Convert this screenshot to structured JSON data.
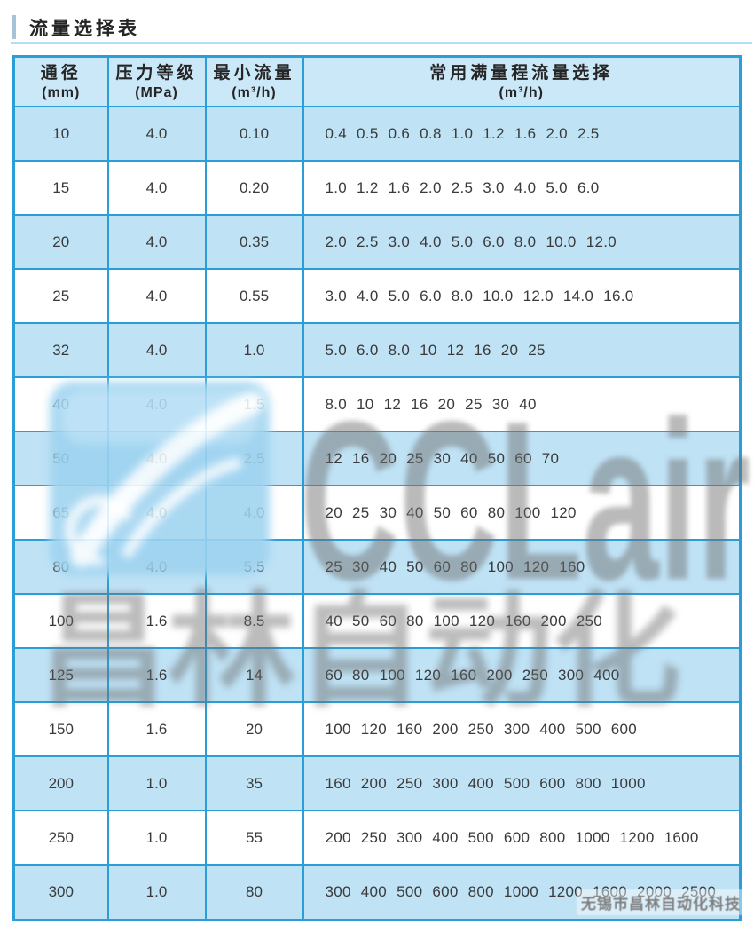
{
  "title": "流量选择表",
  "table": {
    "headers": [
      {
        "key": "dn",
        "line1": "通径",
        "line2": "(mm)"
      },
      {
        "key": "mpa",
        "line1": "压力等级",
        "line2": "(MPa)"
      },
      {
        "key": "min",
        "line1": "最小流量",
        "line2": "(m³/h)"
      },
      {
        "key": "range",
        "line1": "常用满量程流量选择",
        "line2": "(m³/h)"
      }
    ],
    "rows": [
      {
        "dn": "10",
        "mpa": "4.0",
        "min": "0.10",
        "range": "0.4 0.5 0.6 0.8 1.0 1.2 1.6 2.0 2.5"
      },
      {
        "dn": "15",
        "mpa": "4.0",
        "min": "0.20",
        "range": "1.0 1.2 1.6 2.0 2.5 3.0 4.0 5.0 6.0"
      },
      {
        "dn": "20",
        "mpa": "4.0",
        "min": "0.35",
        "range": "2.0 2.5 3.0 4.0 5.0 6.0 8.0 10.0 12.0"
      },
      {
        "dn": "25",
        "mpa": "4.0",
        "min": "0.55",
        "range": "3.0 4.0 5.0 6.0 8.0 10.0 12.0 14.0 16.0"
      },
      {
        "dn": "32",
        "mpa": "4.0",
        "min": "1.0",
        "range": "5.0 6.0 8.0 10 12 16 20 25"
      },
      {
        "dn": "40",
        "mpa": "4.0",
        "min": "1.5",
        "range": "8.0 10 12 16 20 25 30 40"
      },
      {
        "dn": "50",
        "mpa": "4.0",
        "min": "2.5",
        "range": "12 16 20 25 30 40 50 60 70"
      },
      {
        "dn": "65",
        "mpa": "4.0",
        "min": "4.0",
        "range": "20 25 30 40 50 60 80 100 120"
      },
      {
        "dn": "80",
        "mpa": "4.0",
        "min": "5.5",
        "range": "25 30 40 50 60 80 100 120 160"
      },
      {
        "dn": "100",
        "mpa": "1.6",
        "min": "8.5",
        "range": "40 50 60 80 100 120 160 200 250"
      },
      {
        "dn": "125",
        "mpa": "1.6",
        "min": "14",
        "range": "60 80 100 120 160 200 250 300 400"
      },
      {
        "dn": "150",
        "mpa": "1.6",
        "min": "20",
        "range": "100 120 160 200 250 300 400 500 600"
      },
      {
        "dn": "200",
        "mpa": "1.0",
        "min": "35",
        "range": "160 200 250 300 400 500 600 800 1000"
      },
      {
        "dn": "250",
        "mpa": "1.0",
        "min": "55",
        "range": "200 250 300 400 500 600 800 1000 1200 1600"
      },
      {
        "dn": "300",
        "mpa": "1.0",
        "min": "80",
        "range": "300 400 500 600 800 1000 1200 1600 2000 2500"
      }
    ]
  },
  "watermark": {
    "logo": "swirl-logo",
    "brand": "CCLair",
    "brand_cn": "昌林自动化",
    "footer": "无锡市昌林自动化科技"
  },
  "colors": {
    "grid_border": "#2b9ed7",
    "row_blue": "#bfe2f5",
    "header_bg": "#cbe8f8",
    "title_underline": "#b2dff4",
    "title_accent": "#a8c2d6",
    "watermark_gray": "#6e6e6e",
    "watermark_logo_blue": "#9ed3f0"
  }
}
